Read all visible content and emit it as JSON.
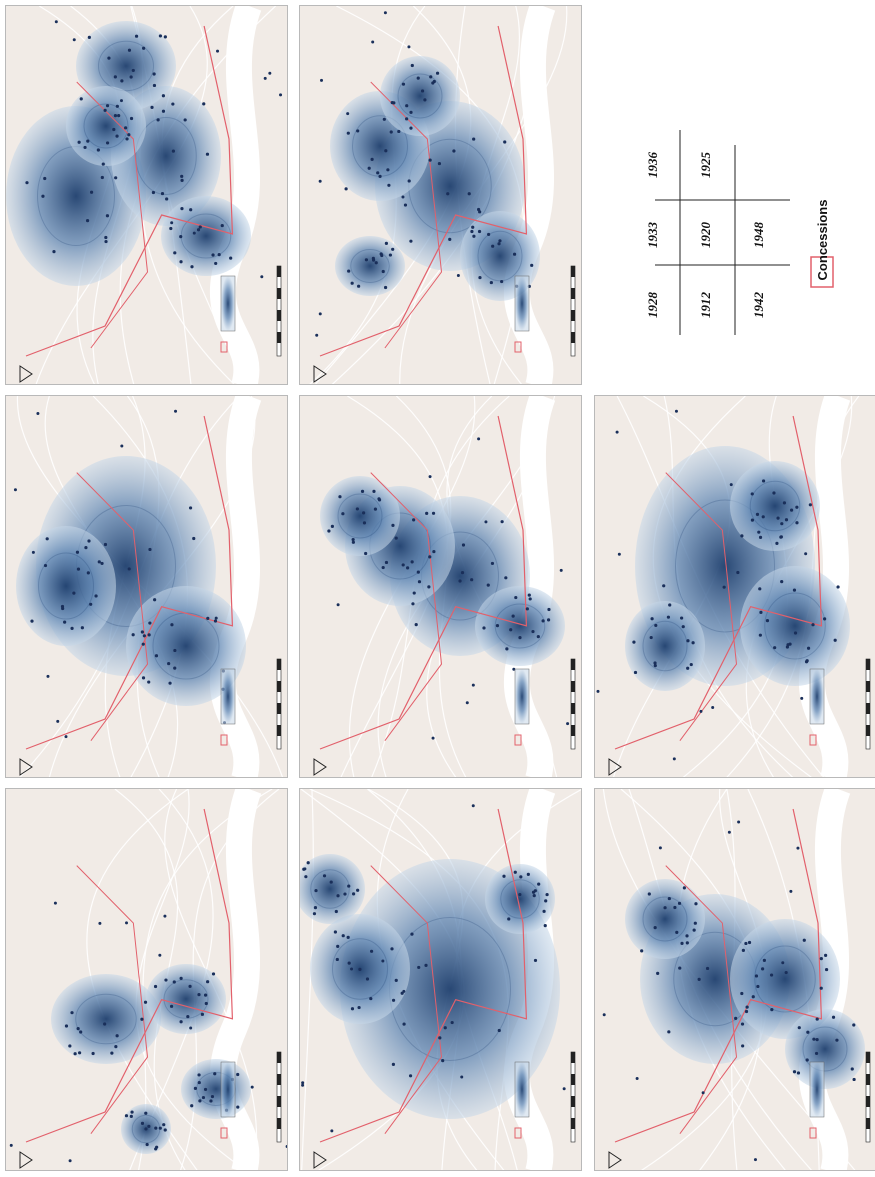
{
  "panels": [
    {
      "id": "map-1912",
      "year": "1912"
    },
    {
      "id": "map-1920",
      "year": "1920"
    },
    {
      "id": "map-1925",
      "year": "1925"
    },
    {
      "id": "map-1928",
      "year": "1928"
    },
    {
      "id": "map-1933",
      "year": "1933"
    },
    {
      "id": "map-1936",
      "year": "1936"
    },
    {
      "id": "map-1942",
      "year": "1942"
    },
    {
      "id": "map-1948",
      "year": "1948"
    }
  ],
  "key_grid": {
    "row1": [
      "1912",
      "1920",
      "1925"
    ],
    "row2": [
      "1928",
      "1933",
      "1936"
    ],
    "row3": [
      "1942",
      "1948"
    ]
  },
  "legend": {
    "label": "Concessions",
    "swatch_color": "#e2606b"
  },
  "colors": {
    "map_background": "#f1ebe6",
    "river": "#ffffff",
    "concession_boundary": "#e2606b",
    "density_dark": "#1e3f6e",
    "density_light": "#c6d7e8",
    "points": "#1a2f5a"
  }
}
